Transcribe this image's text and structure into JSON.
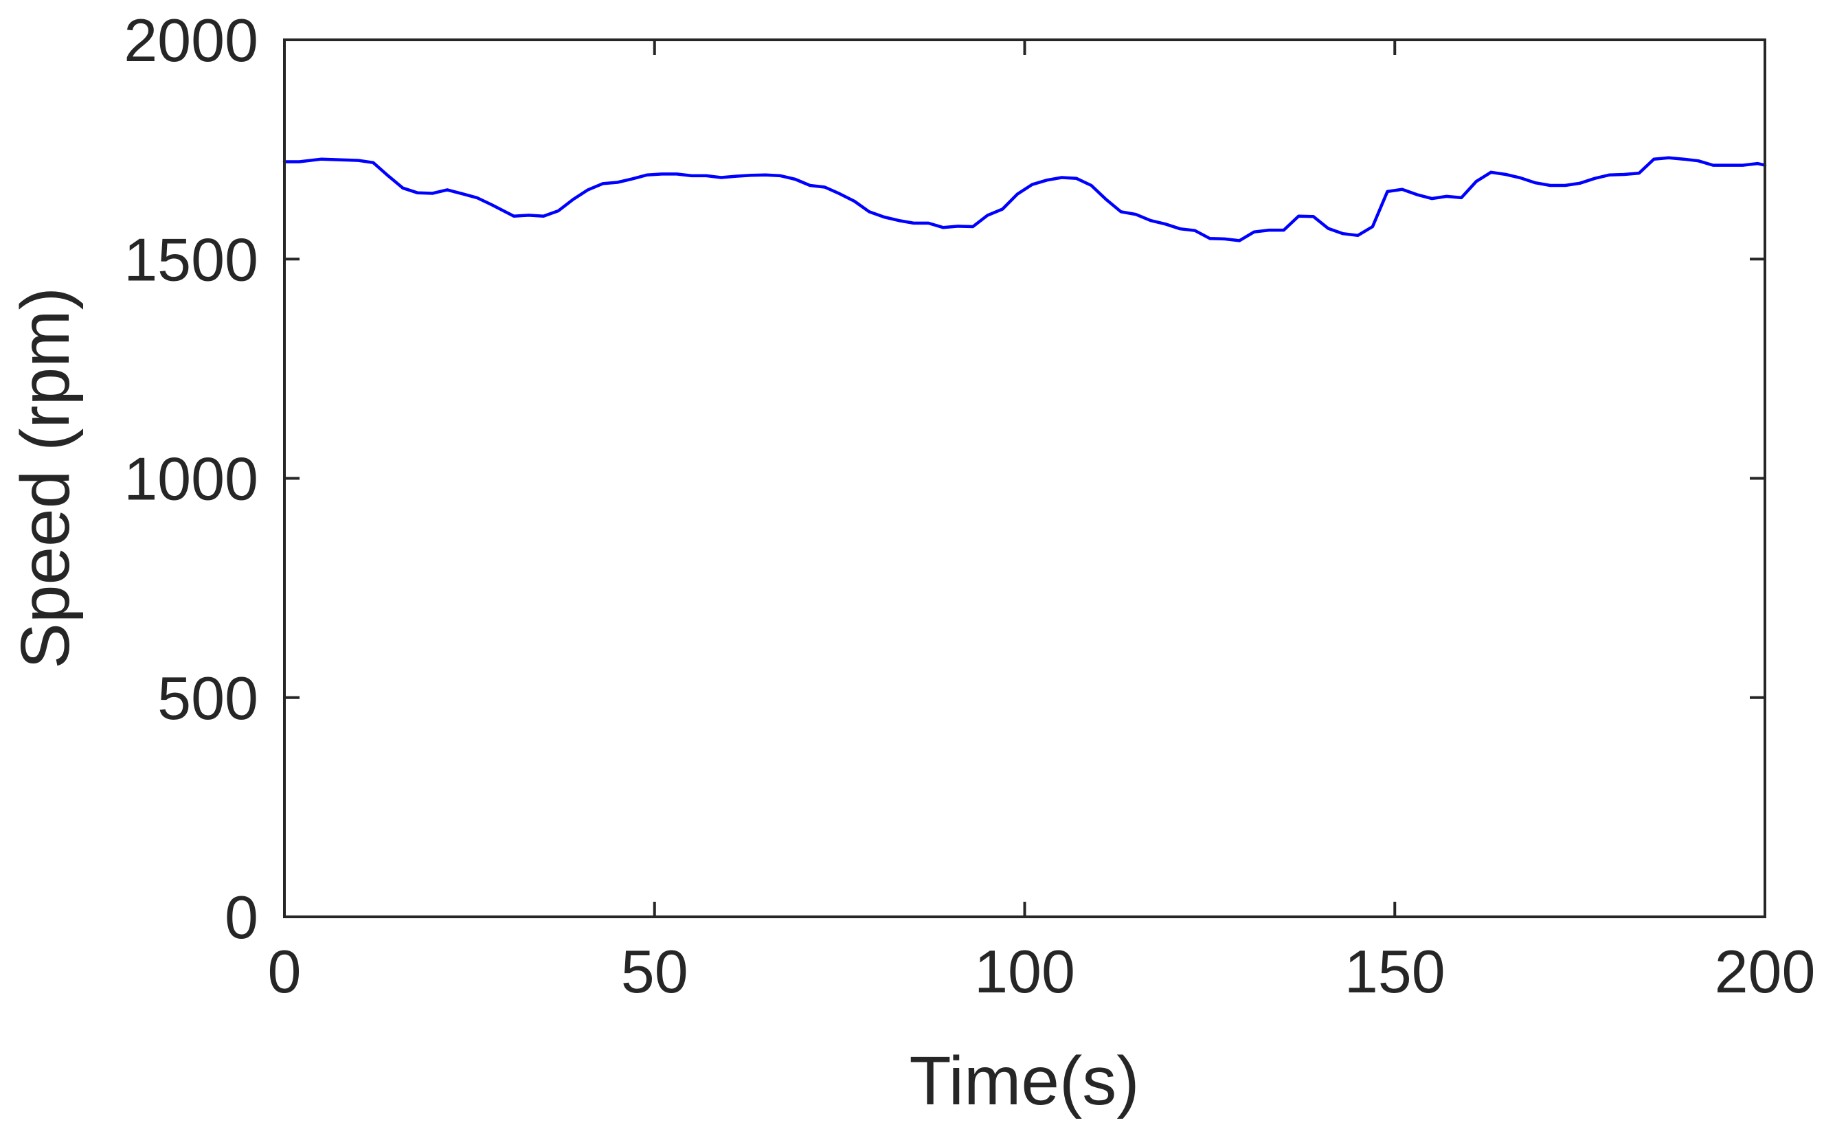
{
  "chart_data": {
    "type": "line",
    "title": "",
    "xlabel": "Time(s)",
    "ylabel": "Speed (rpm)",
    "xlim": [
      0,
      200
    ],
    "ylim": [
      0,
      2000
    ],
    "xticks": [
      0,
      50,
      100,
      150,
      200
    ],
    "yticks": [
      0,
      500,
      1000,
      1500,
      2000
    ],
    "xtick_labels": [
      "0",
      "50",
      "100",
      "150",
      "200"
    ],
    "ytick_labels": [
      "0",
      "500",
      "1000",
      "1500",
      "2000"
    ],
    "grid": false,
    "series": [
      {
        "color": "#0000ff",
        "x": [
          0,
          2,
          5,
          8,
          10,
          12,
          14,
          16,
          18,
          20,
          22,
          24,
          26,
          28,
          31,
          33,
          35,
          37,
          39,
          41,
          43,
          45,
          47,
          49,
          51,
          53,
          55,
          57,
          59,
          61,
          63,
          65,
          67,
          69,
          71,
          73,
          75,
          77,
          79,
          81,
          83,
          85,
          87,
          89,
          91,
          93,
          95,
          97,
          99,
          101,
          103,
          105,
          107,
          109,
          111,
          113,
          115,
          117,
          119,
          121,
          123,
          125,
          127,
          129,
          131,
          133,
          135,
          137,
          139,
          141,
          143,
          145,
          147,
          149,
          151,
          153,
          155,
          157,
          159,
          161,
          163,
          165,
          167,
          169,
          171,
          173,
          175,
          177,
          179,
          181,
          183,
          185,
          187,
          189,
          191,
          193,
          195,
          197,
          199,
          200
        ],
        "y": [
          1722,
          1722,
          1728,
          1726,
          1725,
          1720,
          1690,
          1662,
          1651,
          1650,
          1658,
          1649,
          1640,
          1624,
          1598,
          1600,
          1598,
          1610,
          1636,
          1658,
          1672,
          1675,
          1683,
          1692,
          1694,
          1694,
          1690,
          1690,
          1686,
          1689,
          1691,
          1692,
          1690,
          1682,
          1668,
          1664,
          1649,
          1632,
          1608,
          1596,
          1588,
          1582,
          1582,
          1572,
          1575,
          1574,
          1600,
          1614,
          1648,
          1670,
          1680,
          1686,
          1684,
          1668,
          1636,
          1608,
          1602,
          1588,
          1580,
          1569,
          1565,
          1547,
          1546,
          1542,
          1562,
          1566,
          1566,
          1598,
          1597,
          1570,
          1558,
          1554,
          1574,
          1654,
          1659,
          1647,
          1638,
          1643,
          1640,
          1677,
          1698,
          1693,
          1685,
          1674,
          1668,
          1668,
          1673,
          1684,
          1692,
          1693,
          1696,
          1728,
          1731,
          1728,
          1724,
          1714,
          1714,
          1714,
          1718,
          1714
        ]
      }
    ]
  }
}
